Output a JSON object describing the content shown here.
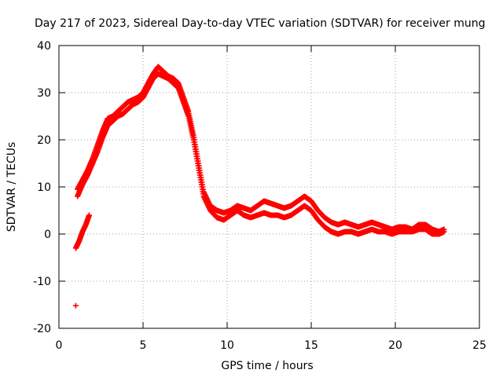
{
  "chart_data": {
    "type": "scatter",
    "title": "Day 217 of 2023, Sidereal Day-to-day VTEC variation (SDTVAR) for receiver mung",
    "xlabel": "GPS time / hours",
    "ylabel": "SDTVAR / TECUs",
    "xlim": [
      0,
      25
    ],
    "ylim": [
      -20,
      40
    ],
    "xticks": [
      "0",
      "5",
      "10",
      "15",
      "20",
      "25"
    ],
    "yticks": [
      "-20",
      "-10",
      "0",
      "10",
      "20",
      "30",
      "40"
    ],
    "grid": true,
    "marker": "+",
    "series_color": "#ff0000",
    "series": [
      {
        "name": "SDTVAR",
        "x": [
          1.0,
          1.2,
          1.4,
          1.6,
          1.8
        ],
        "y": [
          -3.0,
          -1.5,
          0.5,
          2.0,
          4.0
        ]
      },
      {
        "name": "SDTVAR",
        "x": [
          1.1,
          1.4,
          1.7,
          2.0,
          2.3,
          2.6,
          2.9,
          3.2,
          3.5,
          3.8,
          4.1,
          4.4,
          4.7,
          5.0,
          5.3,
          5.6,
          5.9,
          6.2,
          6.5,
          6.8,
          7.1,
          7.4,
          7.7,
          8.0,
          8.3,
          8.6,
          9.0,
          9.4,
          9.8,
          10.2,
          10.6,
          11.0,
          11.4,
          11.8,
          12.2,
          12.6,
          13.0,
          13.4,
          13.8,
          14.2,
          14.6,
          15.0,
          15.4,
          15.8,
          16.2,
          16.6,
          17.0,
          17.4,
          17.8,
          18.2,
          18.6,
          19.0,
          19.4,
          19.8,
          20.2,
          20.6,
          21.0,
          21.4,
          21.8,
          22.2,
          22.6,
          22.9
        ],
        "y": [
          9.5,
          11.5,
          13.5,
          16.0,
          19.0,
          22.0,
          24.5,
          25.0,
          26.0,
          27.0,
          28.0,
          28.5,
          29.0,
          30.0,
          32.0,
          34.0,
          35.5,
          34.5,
          33.5,
          33.0,
          32.0,
          29.0,
          26.0,
          21.0,
          15.0,
          9.0,
          6.0,
          5.0,
          4.5,
          5.0,
          6.0,
          5.5,
          5.0,
          6.0,
          7.0,
          6.5,
          6.0,
          5.5,
          6.0,
          7.0,
          8.0,
          7.0,
          5.0,
          3.5,
          2.5,
          2.0,
          2.5,
          2.0,
          1.5,
          2.0,
          2.5,
          2.0,
          1.5,
          1.0,
          1.5,
          1.5,
          1.0,
          2.0,
          2.0,
          1.0,
          0.5,
          1.0
        ]
      },
      {
        "name": "SDTVAR",
        "x": [
          1.1,
          1.4,
          1.7,
          2.0,
          2.3,
          2.6,
          2.9,
          3.2,
          3.5,
          3.8,
          4.1,
          4.4,
          4.7,
          5.0,
          5.3,
          5.6,
          5.9,
          6.2,
          6.5,
          6.8,
          7.1,
          7.4,
          7.7,
          8.0,
          8.3,
          8.6,
          9.0,
          9.4,
          9.8,
          10.2,
          10.6,
          11.0,
          11.4,
          11.8,
          12.2,
          12.6,
          13.0,
          13.4,
          13.8,
          14.2,
          14.6,
          15.0,
          15.4,
          15.8,
          16.2,
          16.6,
          17.0,
          17.4,
          17.8,
          18.2,
          18.6,
          19.0,
          19.4,
          19.8,
          20.2,
          20.6,
          21.0,
          21.4,
          21.8,
          22.2,
          22.6,
          22.9
        ],
        "y": [
          8.0,
          10.5,
          12.5,
          15.0,
          17.5,
          20.5,
          23.0,
          24.0,
          25.0,
          25.5,
          26.5,
          27.5,
          28.0,
          29.0,
          31.0,
          33.0,
          34.0,
          33.5,
          33.0,
          32.0,
          31.0,
          28.0,
          25.0,
          20.0,
          14.0,
          8.0,
          5.0,
          3.5,
          3.0,
          4.0,
          5.0,
          4.0,
          3.5,
          4.0,
          4.5,
          4.0,
          4.0,
          3.5,
          4.0,
          5.0,
          6.0,
          5.0,
          3.0,
          1.5,
          0.5,
          0.0,
          0.5,
          0.5,
          0.0,
          0.5,
          1.0,
          0.5,
          0.5,
          0.0,
          0.5,
          0.5,
          0.5,
          1.0,
          1.0,
          0.0,
          0.0,
          0.5
        ]
      },
      {
        "name": "SDTVAR",
        "x": [
          1.0
        ],
        "y": [
          -15.2
        ]
      }
    ]
  }
}
